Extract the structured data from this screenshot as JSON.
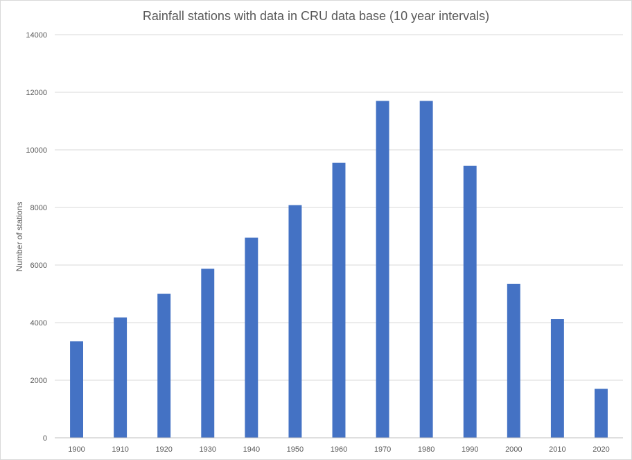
{
  "chart_data": {
    "type": "bar",
    "title": "Rainfall stations with data in CRU data base (10 year intervals)",
    "xlabel": "",
    "ylabel": "Number  of stations",
    "categories": [
      "1900",
      "1910",
      "1920",
      "1930",
      "1940",
      "1950",
      "1960",
      "1970",
      "1980",
      "1990",
      "2000",
      "2010",
      "2020"
    ],
    "values": [
      3350,
      4180,
      5000,
      5870,
      6950,
      8080,
      9550,
      11700,
      11700,
      9450,
      5350,
      4120,
      1700
    ],
    "ylim": [
      0,
      14000
    ],
    "yticks": [
      "0",
      "2000",
      "4000",
      "6000",
      "8000",
      "10000",
      "12000",
      "14000"
    ],
    "grid": true,
    "legend": "none",
    "bar_color": "#4472c4",
    "grid_color": "#d9d9d9"
  }
}
